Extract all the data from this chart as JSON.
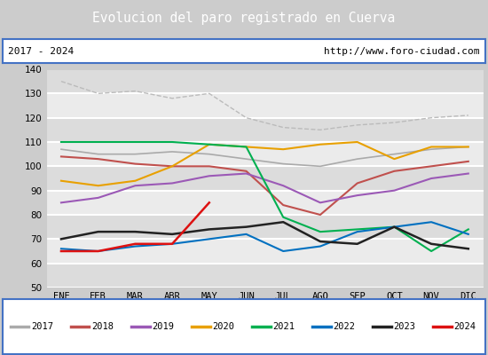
{
  "title": "Evolucion del paro registrado en Cuerva",
  "title_bg": "#4f86c6",
  "subtitle_left": "2017 - 2024",
  "subtitle_right": "http://www.foro-ciudad.com",
  "months": [
    "ENE",
    "FEB",
    "MAR",
    "ABR",
    "MAY",
    "JUN",
    "JUL",
    "AGO",
    "SEP",
    "OCT",
    "NOV",
    "DIC"
  ],
  "ylim": [
    50,
    140
  ],
  "yticks": [
    50,
    60,
    70,
    80,
    90,
    100,
    110,
    120,
    130,
    140
  ],
  "gray_values": [
    135,
    130,
    131,
    128,
    130,
    120,
    116,
    115,
    117,
    118,
    120,
    121
  ],
  "series": [
    {
      "year": "2017",
      "color": "#aaaaaa",
      "lw": 1.2,
      "values": [
        107,
        105,
        105,
        106,
        105,
        103,
        101,
        100,
        103,
        105,
        107,
        108
      ]
    },
    {
      "year": "2018",
      "color": "#c0504d",
      "lw": 1.5,
      "values": [
        104,
        103,
        101,
        100,
        100,
        98,
        84,
        80,
        93,
        98,
        100,
        102
      ]
    },
    {
      "year": "2019",
      "color": "#9b59b6",
      "lw": 1.5,
      "values": [
        85,
        87,
        92,
        93,
        96,
        97,
        92,
        85,
        88,
        90,
        95,
        97
      ]
    },
    {
      "year": "2020",
      "color": "#e8a000",
      "lw": 1.5,
      "values": [
        94,
        92,
        94,
        100,
        109,
        108,
        107,
        109,
        110,
        103,
        108,
        108
      ]
    },
    {
      "year": "2021",
      "color": "#00b050",
      "lw": 1.5,
      "values": [
        110,
        110,
        110,
        110,
        109,
        108,
        79,
        73,
        74,
        75,
        65,
        74
      ]
    },
    {
      "year": "2022",
      "color": "#0070c0",
      "lw": 1.5,
      "values": [
        66,
        65,
        67,
        68,
        70,
        72,
        65,
        67,
        73,
        75,
        77,
        72
      ]
    },
    {
      "year": "2023",
      "color": "#222222",
      "lw": 1.8,
      "values": [
        70,
        73,
        73,
        72,
        74,
        75,
        77,
        69,
        68,
        75,
        68,
        66
      ]
    },
    {
      "year": "2024",
      "color": "#dd1111",
      "lw": 1.8,
      "values": [
        65,
        65,
        68,
        68,
        85,
        null,
        null,
        null,
        null,
        null,
        null,
        null
      ]
    }
  ],
  "fig_bg": "#cccccc",
  "plot_bg": "#ebebeb",
  "grid_color": "#ffffff",
  "band_colors": [
    "#dcdcdc",
    "#ebebeb"
  ]
}
